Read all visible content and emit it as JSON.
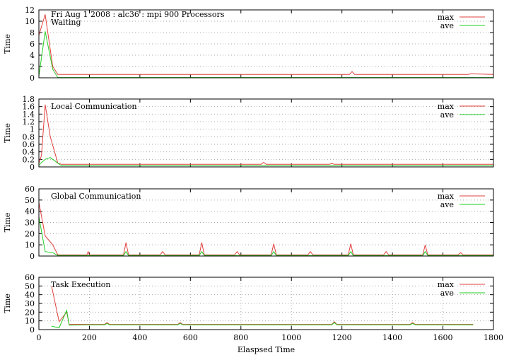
{
  "header": "Fri Aug 1 2008 : alc36 : mpi 900 Processors",
  "xlabel": "Elaspsed Time",
  "colors": {
    "max": "#e0403c",
    "ave": "#22cc22",
    "grid": "#aaaaaa"
  },
  "legend": {
    "max": "max",
    "ave": "ave"
  },
  "chart_data": [
    {
      "type": "line",
      "title": "Waiting",
      "ylabel": "Time",
      "xlim": [
        0,
        1800
      ],
      "ylim": [
        0,
        12
      ],
      "yticks": [
        "0",
        "2",
        "4",
        "6",
        "8",
        "10",
        "12"
      ],
      "xticks": [],
      "series": [
        {
          "name": "max",
          "x": [
            0,
            25,
            55,
            75,
            200,
            400,
            600,
            800,
            1000,
            1200,
            1230,
            1240,
            1250,
            1400,
            1600,
            1700,
            1710,
            1800
          ],
          "y": [
            7.5,
            11.2,
            2,
            0.6,
            0.6,
            0.6,
            0.6,
            0.6,
            0.6,
            0.6,
            0.6,
            1.1,
            0.6,
            0.6,
            0.6,
            0.6,
            0.7,
            0.6
          ]
        },
        {
          "name": "ave",
          "x": [
            0,
            25,
            55,
            75,
            1800
          ],
          "y": [
            0.3,
            8.2,
            1.5,
            0.05,
            0.05
          ]
        }
      ]
    },
    {
      "type": "line",
      "title": "Local Communication",
      "ylabel": "Time",
      "xlim": [
        0,
        1800
      ],
      "ylim": [
        0,
        1.8
      ],
      "yticks": [
        "0",
        "0.2",
        "0.4",
        "0.6",
        "0.8",
        "1",
        "1.2",
        "1.4",
        "1.6",
        "1.8"
      ],
      "xticks": [],
      "series": [
        {
          "name": "max",
          "x": [
            0,
            10,
            25,
            45,
            75,
            90,
            200,
            400,
            600,
            880,
            890,
            900,
            1000,
            1150,
            1160,
            1170,
            1400,
            1800
          ],
          "y": [
            0.1,
            0.3,
            1.65,
            0.8,
            0.1,
            0.07,
            0.07,
            0.07,
            0.07,
            0.07,
            0.12,
            0.07,
            0.07,
            0.07,
            0.09,
            0.07,
            0.07,
            0.07
          ]
        },
        {
          "name": "ave",
          "x": [
            0,
            25,
            45,
            75,
            90,
            1800
          ],
          "y": [
            0.05,
            0.2,
            0.25,
            0.1,
            0.03,
            0.03
          ]
        }
      ]
    },
    {
      "type": "line",
      "title": "Global Communication",
      "ylabel": "Time",
      "xlim": [
        0,
        1800
      ],
      "ylim": [
        0,
        60
      ],
      "yticks": [
        "0",
        "10",
        "20",
        "30",
        "40",
        "50",
        "60"
      ],
      "xticks": [],
      "series": [
        {
          "name": "max",
          "x": [
            0,
            25,
            55,
            75,
            190,
            195,
            200,
            335,
            345,
            355,
            480,
            490,
            500,
            635,
            645,
            655,
            775,
            785,
            795,
            920,
            930,
            940,
            1065,
            1075,
            1085,
            1225,
            1235,
            1245,
            1365,
            1375,
            1385,
            1520,
            1530,
            1540,
            1660,
            1670,
            1680,
            1800
          ],
          "y": [
            48,
            18,
            10,
            1,
            1,
            4,
            1,
            1,
            12,
            1,
            1,
            4,
            1,
            1,
            12,
            1,
            1,
            4,
            1,
            1,
            11,
            1,
            1,
            4,
            1,
            1,
            11,
            1,
            1,
            4,
            1,
            1,
            10,
            1,
            1,
            3,
            1,
            1
          ]
        },
        {
          "name": "ave",
          "x": [
            0,
            25,
            55,
            75,
            335,
            345,
            355,
            635,
            645,
            655,
            920,
            930,
            940,
            1225,
            1235,
            1245,
            1520,
            1530,
            1540,
            1800
          ],
          "y": [
            35,
            4,
            3,
            0.5,
            0.5,
            4,
            0.5,
            0.5,
            4,
            0.5,
            0.5,
            4,
            0.5,
            0.5,
            4,
            0.5,
            0.5,
            4,
            0.5,
            0.5
          ]
        }
      ]
    },
    {
      "type": "line",
      "title": "Task Execution",
      "ylabel": "Time",
      "xlim": [
        0,
        1800
      ],
      "ylim": [
        0,
        60
      ],
      "yticks": [
        "0",
        "10",
        "20",
        "30",
        "40",
        "50",
        "60"
      ],
      "xticks": [
        "0",
        "200",
        "400",
        "600",
        "800",
        "1000",
        "1200",
        "1400",
        "1600",
        "1800"
      ],
      "series": [
        {
          "name": "max",
          "x": [
            50,
            80,
            110,
            120,
            200,
            260,
            270,
            280,
            400,
            550,
            560,
            570,
            700,
            900,
            1100,
            1160,
            1170,
            1180,
            1300,
            1470,
            1480,
            1490,
            1600,
            1720
          ],
          "y": [
            50,
            9,
            20,
            6,
            6,
            6,
            8,
            6,
            6,
            6,
            8,
            6,
            6,
            6,
            6,
            6,
            9,
            6,
            6,
            6,
            8,
            6,
            6,
            6
          ]
        },
        {
          "name": "ave",
          "x": [
            50,
            80,
            110,
            120,
            200,
            260,
            270,
            280,
            400,
            550,
            560,
            570,
            700,
            900,
            1100,
            1160,
            1170,
            1180,
            1300,
            1470,
            1480,
            1490,
            1600,
            1720
          ],
          "y": [
            4,
            2,
            22,
            5,
            5.5,
            5.5,
            7,
            5.5,
            5.5,
            5.5,
            7,
            5.5,
            5.5,
            5.5,
            5.5,
            5.5,
            8,
            5.5,
            5.5,
            5.5,
            7,
            5.5,
            5.5,
            5.5
          ]
        }
      ]
    }
  ]
}
